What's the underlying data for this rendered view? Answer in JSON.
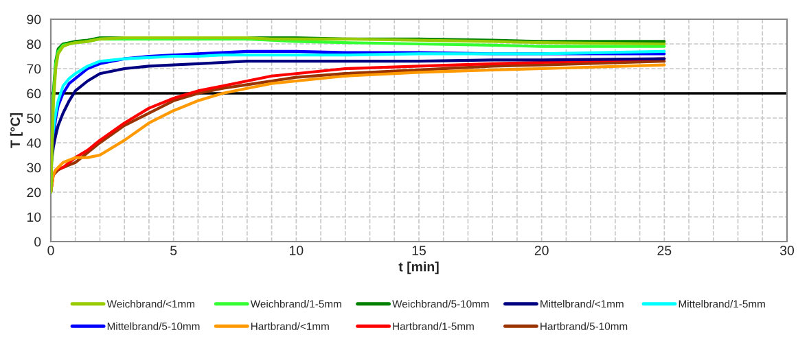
{
  "chart_data": {
    "type": "line",
    "xlabel": "t [min]",
    "ylabel": "T [°C]",
    "x": [
      0,
      0.1,
      0.2,
      0.3,
      0.5,
      0.75,
      1,
      1.5,
      2,
      3,
      4,
      5,
      6,
      7,
      8,
      9,
      10,
      12,
      15,
      18,
      20,
      25
    ],
    "series": [
      {
        "name": "Weichbrand/<1mm",
        "color": "#99cc00",
        "values": [
          20,
          55,
          70,
          76,
          79,
          80,
          80.5,
          81,
          82,
          82.5,
          82.5,
          82.5,
          82.5,
          82.5,
          82.5,
          82,
          82,
          82,
          81.5,
          81,
          80.5,
          80
        ]
      },
      {
        "name": "Weichbrand/1-5mm",
        "color": "#33ff33",
        "values": [
          20,
          58,
          72,
          77,
          79.5,
          80,
          80.5,
          81,
          82,
          82,
          82,
          82,
          82,
          82,
          82,
          81.5,
          81,
          80.5,
          80,
          79.5,
          79,
          79
        ]
      },
      {
        "name": "Weichbrand/5-10mm",
        "color": "#008000",
        "values": [
          20,
          60,
          73,
          78,
          80,
          80.5,
          81,
          81.5,
          82.5,
          82.5,
          82.5,
          82.5,
          82.5,
          82.5,
          82.5,
          82.5,
          82.5,
          82,
          82,
          81.5,
          81,
          81
        ]
      },
      {
        "name": "Mittelbrand/<1mm",
        "color": "#000080",
        "values": [
          30,
          38,
          43,
          47,
          52,
          57,
          61,
          65,
          68,
          70,
          71,
          71.5,
          72,
          72.5,
          73,
          73,
          73,
          73,
          73,
          73.5,
          73.5,
          74
        ]
      },
      {
        "name": "Mittelbrand/1-5mm",
        "color": "#00ffff",
        "values": [
          30,
          45,
          52,
          57,
          63,
          66,
          68,
          71,
          73,
          74,
          74.5,
          75,
          75,
          75.5,
          75.5,
          75.5,
          75.5,
          75.5,
          76,
          76,
          76,
          77
        ]
      },
      {
        "name": "Mittelbrand/5-10mm",
        "color": "#0000ff",
        "values": [
          30,
          42,
          50,
          55,
          60,
          64,
          66,
          70,
          72,
          74,
          75,
          75.5,
          76,
          76.5,
          77,
          77,
          77,
          76.5,
          76.5,
          76,
          76,
          76
        ]
      },
      {
        "name": "Hartbrand/<1mm",
        "color": "#ff9900",
        "values": [
          20,
          27,
          29,
          30,
          32,
          33,
          34,
          34,
          35,
          41,
          48,
          53,
          57,
          60,
          62,
          64,
          65,
          67,
          68.5,
          69.5,
          70,
          71.5
        ]
      },
      {
        "name": "Hartbrand/1-5mm",
        "color": "#ff0000",
        "values": [
          20,
          27,
          29,
          29.5,
          30,
          32,
          34,
          37,
          41,
          48,
          54,
          58,
          61,
          63,
          65,
          67,
          68,
          70,
          71,
          72,
          72.5,
          74
        ]
      },
      {
        "name": "Hartbrand/5-10mm",
        "color": "#993300",
        "values": [
          20,
          27,
          28,
          29,
          30,
          31,
          32,
          36,
          40,
          47,
          52,
          57,
          60,
          62,
          63.5,
          65,
          66.5,
          68,
          69.5,
          71,
          71.5,
          73
        ]
      }
    ],
    "xlim": [
      0,
      30
    ],
    "xticks": [
      0,
      {
        "value": 1,
        "label": null
      },
      {
        "value": 2,
        "label": null
      },
      {
        "value": 3,
        "label": null
      },
      {
        "value": 4,
        "label": null
      },
      5,
      {
        "value": 6,
        "label": null
      },
      {
        "value": 7,
        "label": null
      },
      {
        "value": 8,
        "label": null
      },
      {
        "value": 9,
        "label": null
      },
      10,
      {
        "value": 11,
        "label": null
      },
      {
        "value": 12,
        "label": null
      },
      {
        "value": 13,
        "label": null
      },
      {
        "value": 14,
        "label": null
      },
      15,
      {
        "value": 16,
        "label": null
      },
      {
        "value": 17,
        "label": null
      },
      {
        "value": 18,
        "label": null
      },
      {
        "value": 19,
        "label": null
      },
      20,
      {
        "value": 21,
        "label": null
      },
      {
        "value": 22,
        "label": null
      },
      {
        "value": 23,
        "label": null
      },
      {
        "value": 24,
        "label": null
      },
      25,
      {
        "value": 26,
        "label": null
      },
      {
        "value": 27,
        "label": null
      },
      {
        "value": 28,
        "label": null
      },
      {
        "value": 29,
        "label": null
      },
      30
    ],
    "ylim": [
      0,
      90
    ],
    "yticks": [
      0,
      10,
      20,
      30,
      40,
      50,
      60,
      70,
      80,
      90
    ],
    "ref_lines": [
      {
        "axis": "y",
        "value": 60,
        "color": "#000000"
      }
    ],
    "grid": true,
    "legend": "bottom",
    "marker": "none",
    "line_style": "solid"
  }
}
